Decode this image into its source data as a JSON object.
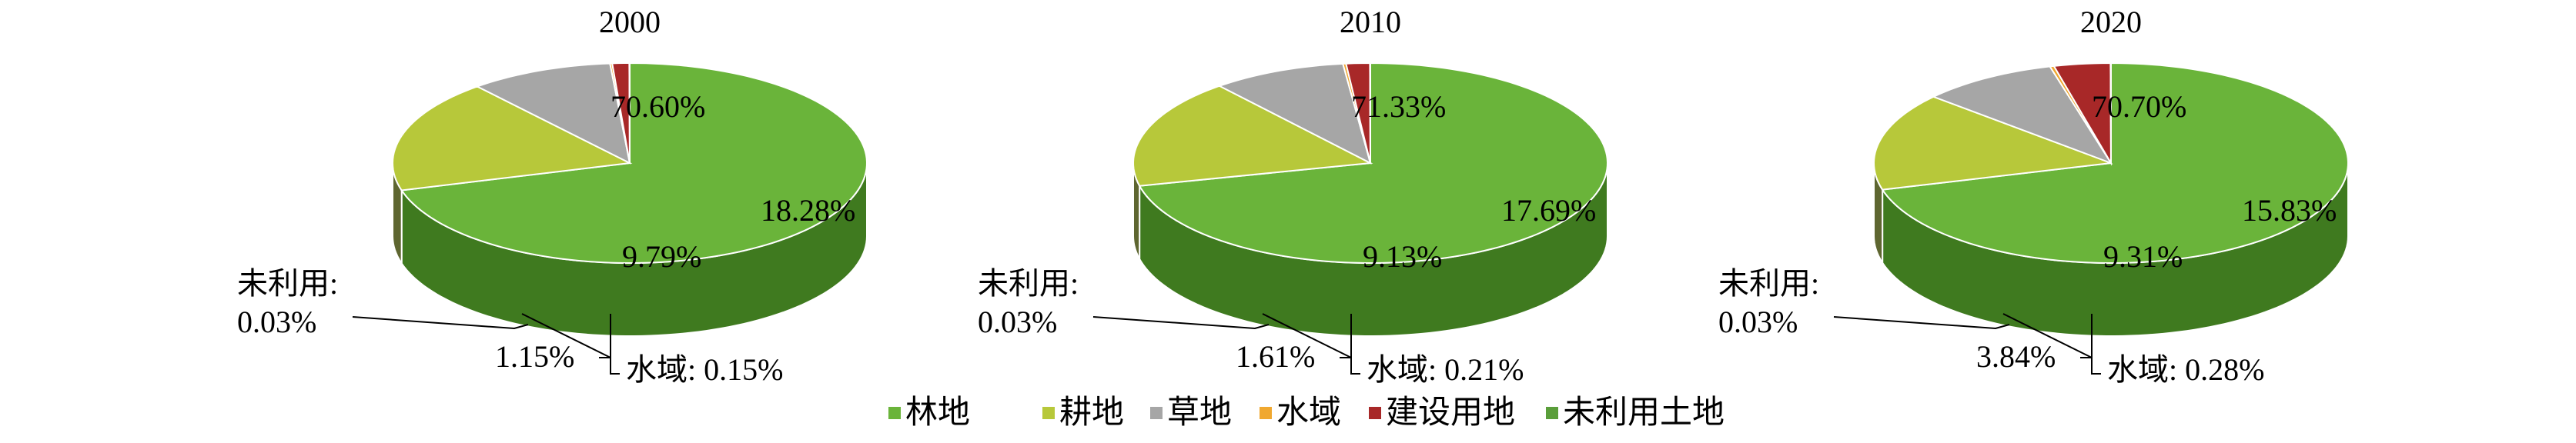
{
  "legend": [
    {
      "label": "林地",
      "color": "#6AB43A"
    },
    {
      "label": "耕地",
      "color": "#B7C83A"
    },
    {
      "label": "草地",
      "color": "#A6A6A6"
    },
    {
      "label": "水域",
      "color": "#F0A830"
    },
    {
      "label": "建设用地",
      "color": "#A82828"
    },
    {
      "label": "未利用土地",
      "color": "#5A9E3A"
    }
  ],
  "chart_data": [
    {
      "type": "pie",
      "title": "2000",
      "categories": [
        "林地",
        "耕地",
        "草地",
        "水域",
        "建设用地",
        "未利用土地"
      ],
      "values": [
        70.6,
        18.28,
        9.79,
        0.15,
        1.15,
        0.03
      ],
      "labels": [
        "70.60%",
        "18.28%",
        "9.79%",
        "水域: 0.15%",
        "1.15%",
        "未利用: 0.03%"
      ]
    },
    {
      "type": "pie",
      "title": "2010",
      "categories": [
        "林地",
        "耕地",
        "草地",
        "水域",
        "建设用地",
        "未利用土地"
      ],
      "values": [
        71.33,
        17.69,
        9.13,
        0.21,
        1.61,
        0.03
      ],
      "labels": [
        "71.33%",
        "17.69%",
        "9.13%",
        "水域: 0.21%",
        "1.61%",
        "未利用: 0.03%"
      ]
    },
    {
      "type": "pie",
      "title": "2020",
      "categories": [
        "林地",
        "耕地",
        "草地",
        "水域",
        "建设用地",
        "未利用土地"
      ],
      "values": [
        70.7,
        15.83,
        9.31,
        0.28,
        3.84,
        0.03
      ],
      "labels": [
        "70.70%",
        "15.83%",
        "9.31%",
        "水域: 0.28%",
        "3.84%",
        "未利用: 0.03%"
      ]
    }
  ]
}
